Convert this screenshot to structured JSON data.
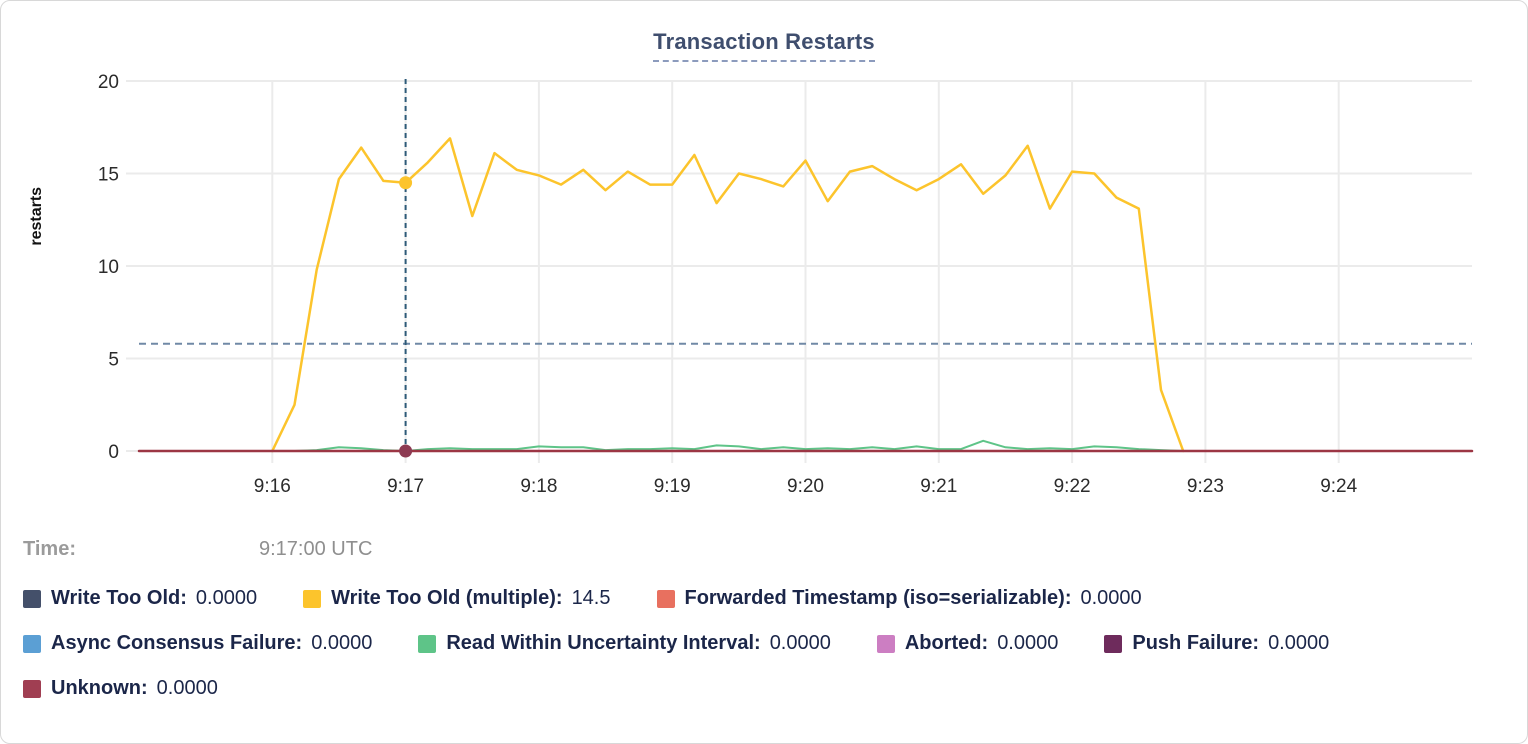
{
  "chart_data": {
    "type": "line",
    "title": "Transaction Restarts",
    "ylabel": "restarts",
    "xlabel": "",
    "ylim": [
      0,
      20
    ],
    "y_ticks": [
      "0",
      "5",
      "10",
      "15",
      "20"
    ],
    "x_domain": [
      "9:15:00",
      "9:25:00"
    ],
    "x_ticks": [
      "9:16",
      "9:17",
      "9:18",
      "9:19",
      "9:20",
      "9:21",
      "9:22",
      "9:23",
      "9:24"
    ],
    "grid": "on",
    "threshold_line": {
      "value": 5.8,
      "style": "dashed",
      "color": "#7089a6"
    },
    "crosshair": {
      "time": "9:17:00",
      "color": "#2d5a78"
    },
    "markers": [
      {
        "time": "9:17:00",
        "value": 14.5,
        "color": "#fcc42c",
        "series": "Write Too Old (multiple)"
      },
      {
        "time": "9:17:00",
        "value": 0,
        "color": "#8d3a52",
        "series": "Unknown"
      }
    ],
    "series": [
      {
        "name": "Read Within Uncertainty Interval",
        "color": "#5ec488",
        "width": 2,
        "points": [
          [
            "9:16:00",
            0
          ],
          [
            "9:16:10",
            0
          ],
          [
            "9:16:20",
            0.05
          ],
          [
            "9:16:30",
            0.2
          ],
          [
            "9:16:40",
            0.15
          ],
          [
            "9:16:50",
            0.05
          ],
          [
            "9:17:00",
            0
          ],
          [
            "9:17:10",
            0.1
          ],
          [
            "9:17:20",
            0.15
          ],
          [
            "9:17:30",
            0.1
          ],
          [
            "9:17:40",
            0.1
          ],
          [
            "9:17:50",
            0.1
          ],
          [
            "9:18:00",
            0.25
          ],
          [
            "9:18:10",
            0.2
          ],
          [
            "9:18:20",
            0.2
          ],
          [
            "9:18:30",
            0.05
          ],
          [
            "9:18:40",
            0.1
          ],
          [
            "9:18:50",
            0.1
          ],
          [
            "9:19:00",
            0.15
          ],
          [
            "9:19:10",
            0.1
          ],
          [
            "9:19:20",
            0.3
          ],
          [
            "9:19:30",
            0.25
          ],
          [
            "9:19:40",
            0.1
          ],
          [
            "9:19:50",
            0.2
          ],
          [
            "9:20:00",
            0.1
          ],
          [
            "9:20:10",
            0.15
          ],
          [
            "9:20:20",
            0.1
          ],
          [
            "9:20:30",
            0.2
          ],
          [
            "9:20:40",
            0.1
          ],
          [
            "9:20:50",
            0.25
          ],
          [
            "9:21:00",
            0.1
          ],
          [
            "9:21:10",
            0.1
          ],
          [
            "9:21:20",
            0.55
          ],
          [
            "9:21:30",
            0.2
          ],
          [
            "9:21:40",
            0.1
          ],
          [
            "9:21:50",
            0.15
          ],
          [
            "9:22:00",
            0.1
          ],
          [
            "9:22:10",
            0.25
          ],
          [
            "9:22:20",
            0.2
          ],
          [
            "9:22:30",
            0.1
          ],
          [
            "9:22:40",
            0.05
          ],
          [
            "9:22:50",
            0
          ]
        ]
      },
      {
        "name": "Write Too Old (multiple)",
        "color": "#fcc42c",
        "width": 2.5,
        "points": [
          [
            "9:16:00",
            0
          ],
          [
            "9:16:10",
            2.5
          ],
          [
            "9:16:20",
            9.8
          ],
          [
            "9:16:30",
            14.7
          ],
          [
            "9:16:40",
            16.4
          ],
          [
            "9:16:50",
            14.6
          ],
          [
            "9:17:00",
            14.5
          ],
          [
            "9:17:10",
            15.6
          ],
          [
            "9:17:20",
            16.9
          ],
          [
            "9:17:30",
            12.7
          ],
          [
            "9:17:40",
            16.1
          ],
          [
            "9:17:50",
            15.2
          ],
          [
            "9:18:00",
            14.9
          ],
          [
            "9:18:10",
            14.4
          ],
          [
            "9:18:20",
            15.2
          ],
          [
            "9:18:30",
            14.1
          ],
          [
            "9:18:40",
            15.1
          ],
          [
            "9:18:50",
            14.4
          ],
          [
            "9:19:00",
            14.4
          ],
          [
            "9:19:10",
            16.0
          ],
          [
            "9:19:20",
            13.4
          ],
          [
            "9:19:30",
            15.0
          ],
          [
            "9:19:40",
            14.7
          ],
          [
            "9:19:50",
            14.3
          ],
          [
            "9:20:00",
            15.7
          ],
          [
            "9:20:10",
            13.5
          ],
          [
            "9:20:20",
            15.1
          ],
          [
            "9:20:30",
            15.4
          ],
          [
            "9:20:40",
            14.7
          ],
          [
            "9:20:50",
            14.1
          ],
          [
            "9:21:00",
            14.7
          ],
          [
            "9:21:10",
            15.5
          ],
          [
            "9:21:20",
            13.9
          ],
          [
            "9:21:30",
            14.9
          ],
          [
            "9:21:40",
            16.5
          ],
          [
            "9:21:50",
            13.1
          ],
          [
            "9:22:00",
            15.1
          ],
          [
            "9:22:10",
            15.0
          ],
          [
            "9:22:20",
            13.7
          ],
          [
            "9:22:30",
            13.1
          ],
          [
            "9:22:40",
            3.3
          ],
          [
            "9:22:50",
            0
          ]
        ]
      },
      {
        "name": "Unknown",
        "color": "#9c3644",
        "width": 2.5,
        "points": [
          [
            "9:15:00",
            0
          ],
          [
            "9:25:00",
            0
          ]
        ]
      }
    ]
  },
  "hover": {
    "time_label": "Time:",
    "time_value": "9:17:00 UTC"
  },
  "legend": {
    "rows": [
      [
        {
          "label": "Write Too Old:",
          "value": "0.0000",
          "color": "#44506a"
        },
        {
          "label": "Write Too Old (multiple):",
          "value": "14.5",
          "color": "#fcc42c"
        },
        {
          "label": "Forwarded Timestamp (iso=serializable):",
          "value": "0.0000",
          "color": "#e8705f"
        }
      ],
      [
        {
          "label": "Async Consensus Failure:",
          "value": "0.0000",
          "color": "#5b9fd4"
        },
        {
          "label": "Read Within Uncertainty Interval:",
          "value": "0.0000",
          "color": "#5ec488"
        },
        {
          "label": "Aborted:",
          "value": "0.0000",
          "color": "#cc7ec2"
        },
        {
          "label": "Push Failure:",
          "value": "0.0000",
          "color": "#6e2b5c"
        }
      ],
      [
        {
          "label": "Unknown:",
          "value": "0.0000",
          "color": "#a03e52"
        }
      ]
    ]
  },
  "colors": {
    "grid": "#ebebeb",
    "tick_text": "#2b2b2b",
    "title_text": "#3f4e6e",
    "legend_text": "#1b2649"
  }
}
